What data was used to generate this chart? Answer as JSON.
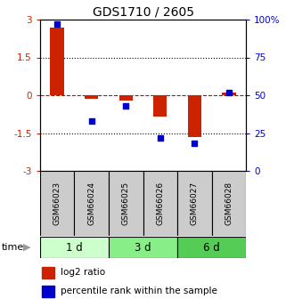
{
  "title": "GDS1710 / 2605",
  "samples": [
    "GSM66023",
    "GSM66024",
    "GSM66025",
    "GSM66026",
    "GSM66027",
    "GSM66028"
  ],
  "log2_ratio": [
    2.7,
    -0.15,
    -0.2,
    -0.85,
    -1.65,
    0.12
  ],
  "percentile_rank": [
    97,
    33,
    43,
    22,
    18,
    52
  ],
  "time_groups": [
    {
      "label": "1 d",
      "start": 0,
      "end": 2,
      "color": "#ccffcc"
    },
    {
      "label": "3 d",
      "start": 2,
      "end": 4,
      "color": "#88ee88"
    },
    {
      "label": "6 d",
      "start": 4,
      "end": 6,
      "color": "#55cc55"
    }
  ],
  "ylim": [
    -3,
    3
  ],
  "yticks_left": [
    -3,
    -1.5,
    0,
    1.5,
    3
  ],
  "yticks_right": [
    0,
    25,
    50,
    75,
    100
  ],
  "ytick_labels_left": [
    "-3",
    "-1.5",
    "0",
    "1.5",
    "3"
  ],
  "ytick_labels_right": [
    "0",
    "25",
    "50",
    "75",
    "100%"
  ],
  "bar_color": "#cc2200",
  "dot_color": "#0000cc",
  "zero_line_color": "#cc0000",
  "bar_width": 0.4,
  "dot_size": 22,
  "label_fontsize": 7,
  "tick_fontsize": 7.5,
  "title_fontsize": 10
}
